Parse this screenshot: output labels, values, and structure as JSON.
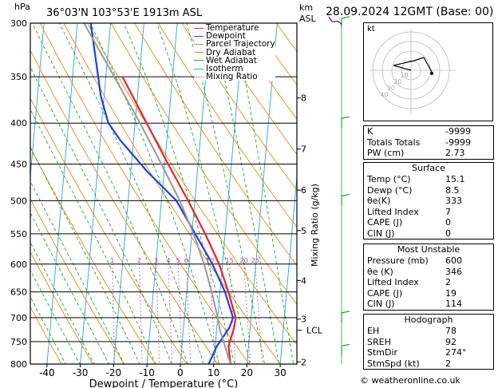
{
  "header": {
    "pressure_unit": "hPa",
    "location": "36°03'N  103°53'E  1913m  ASL",
    "km_unit": "km",
    "asl_unit": "ASL",
    "datetime": "28.09.2024  12GMT  (Base: 00)"
  },
  "chart_data": {
    "type": "line",
    "title": "",
    "xlabel": "Dewpoint / Temperature (°C)",
    "ylabel": "hPa",
    "right_ylabel": "Mixing Ratio (g/kg)",
    "xlim": [
      -45,
      35
    ],
    "ylim": [
      800,
      300
    ],
    "y_scale": "log",
    "pressure_ticks": [
      300,
      350,
      400,
      450,
      500,
      550,
      600,
      650,
      700,
      750,
      800
    ],
    "temp_ticks": [
      -40,
      -30,
      -20,
      -10,
      0,
      10,
      20,
      30
    ],
    "km_ticks": [
      {
        "label": "8",
        "p": 372
      },
      {
        "label": "7",
        "p": 431
      },
      {
        "label": "6",
        "p": 485
      },
      {
        "label": "5",
        "p": 545
      },
      {
        "label": "4",
        "p": 629
      },
      {
        "label": "3",
        "p": 703
      },
      {
        "label": "2",
        "p": 795
      }
    ],
    "lcl": {
      "label": "LCL",
      "p": 726
    },
    "mixing_ratio_labels": [
      "1",
      "2",
      "3",
      "4",
      "5",
      "6",
      "10",
      "15",
      "20",
      "25"
    ],
    "mixing_ratio_values": [
      1,
      2,
      3,
      4,
      5,
      6,
      10,
      15,
      20,
      25
    ],
    "legend": {
      "placement": "top-left",
      "items": [
        {
          "name": "Temperature",
          "color": "#e8232c",
          "style": "solid"
        },
        {
          "name": "Dewpoint",
          "color": "#1f3fe0",
          "style": "solid"
        },
        {
          "name": "Parcel Trajectory",
          "color": "#999999",
          "style": "solid"
        },
        {
          "name": "Dry Adiabat",
          "color": "#e58a1a",
          "style": "solid"
        },
        {
          "name": "Wet Adiabat",
          "color": "#22aa22",
          "style": "solid"
        },
        {
          "name": "Isotherm",
          "color": "#22a6d8",
          "style": "solid"
        },
        {
          "name": "Mixing Ratio",
          "color": "#cc3399",
          "style": "dotted"
        }
      ]
    },
    "series": [
      {
        "name": "Temperature",
        "color": "#e8232c",
        "points": [
          [
            800,
            15.1
          ],
          [
            760,
            14.0
          ],
          [
            720,
            15.2
          ],
          [
            700,
            15.4
          ],
          [
            650,
            12.5
          ],
          [
            600,
            9.0
          ],
          [
            550,
            4.0
          ],
          [
            500,
            -2.0
          ],
          [
            450,
            -9.0
          ],
          [
            400,
            -16.5
          ],
          [
            350,
            -25.0
          ]
        ]
      },
      {
        "name": "Dewpoint",
        "color": "#1f3fe0",
        "points": [
          [
            800,
            8.5
          ],
          [
            760,
            10.5
          ],
          [
            720,
            13.8
          ],
          [
            700,
            14.6
          ],
          [
            650,
            11.5
          ],
          [
            600,
            7.0
          ],
          [
            550,
            1.0
          ],
          [
            500,
            -5.5
          ],
          [
            460,
            -15.0
          ],
          [
            420,
            -24.0
          ],
          [
            400,
            -28.0
          ],
          [
            370,
            -31.0
          ],
          [
            340,
            -33.0
          ],
          [
            300,
            -36.0
          ]
        ]
      },
      {
        "name": "Parcel Trajectory",
        "color": "#999999",
        "points": [
          [
            800,
            15.1
          ],
          [
            726,
            11.0
          ],
          [
            700,
            10.0
          ],
          [
            650,
            7.5
          ],
          [
            600,
            4.5
          ],
          [
            550,
            0.5
          ],
          [
            500,
            -4.5
          ],
          [
            450,
            -11.0
          ],
          [
            400,
            -18.5
          ],
          [
            350,
            -27.5
          ],
          [
            300,
            -38.0
          ]
        ]
      }
    ]
  },
  "stats": {
    "rows": [
      {
        "label": "K",
        "value": "-9999"
      },
      {
        "label": "Totals Totals",
        "value": "-9999"
      },
      {
        "label": "PW (cm)",
        "value": "2.73"
      }
    ]
  },
  "surface": {
    "title": "Surface",
    "rows": [
      {
        "label": "Temp (°C)",
        "value": "15.1"
      },
      {
        "label": "Dewp (°C)",
        "value": "8.5"
      },
      {
        "label": "θe(K)",
        "value": "333"
      },
      {
        "label": "Lifted Index",
        "value": "7"
      },
      {
        "label": "CAPE (J)",
        "value": "0"
      },
      {
        "label": "CIN (J)",
        "value": "0"
      }
    ]
  },
  "unstable": {
    "title": "Most Unstable",
    "rows": [
      {
        "label": "Pressure (mb)",
        "value": "600"
      },
      {
        "label": "θe (K)",
        "value": "346"
      },
      {
        "label": "Lifted Index",
        "value": "2"
      },
      {
        "label": "CAPE (J)",
        "value": "19"
      },
      {
        "label": "CIN (J)",
        "value": "114"
      }
    ]
  },
  "hodograph": {
    "title": "Hodograph",
    "kt_label": "kt",
    "ring_labels": [
      "10",
      "20",
      "30",
      "40"
    ],
    "rows": [
      {
        "label": "EH",
        "value": "78"
      },
      {
        "label": "SREH",
        "value": "92"
      },
      {
        "label": "StmDir",
        "value": "274°"
      },
      {
        "label": "StmSpd (kt)",
        "value": "2"
      }
    ]
  },
  "credit": "© weatheronline.co.uk"
}
